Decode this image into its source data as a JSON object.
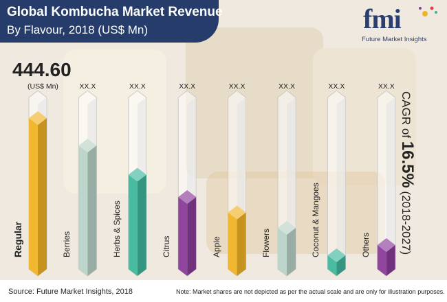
{
  "title": {
    "line1": "Global Kombucha Market Revenue",
    "line2": "By Flavour, 2018 (US$ Mn)"
  },
  "logo": {
    "text": "fmi",
    "tagline": "Future Market Insights"
  },
  "highlight": {
    "value": "444.60",
    "unit": "(US$ Mn)"
  },
  "value_placeholder": "XX.X",
  "cagr": {
    "prefix": "CAGR of ",
    "value": "16.5%",
    "period": " (2018-2027)"
  },
  "footer": {
    "source": "Source: Future Market Insights, 2018",
    "note": "Note: Market shares are not depicted as per the actual scale and are only for illustration purposes."
  },
  "colors": {
    "title_bg": "#263d6b",
    "yellow": "#f1b326",
    "mint": "#b9d3c8",
    "teal": "#3fb79c",
    "purple": "#8a3c99"
  },
  "chart_data": {
    "type": "bar",
    "categories": [
      "Regular",
      "Berries",
      "Herbs & Spices",
      "Citrus",
      "Apple",
      "Flowers",
      "Coconut & Mangoes",
      "Others"
    ],
    "values": [
      444.6,
      null,
      null,
      null,
      null,
      null,
      null,
      null
    ],
    "value_labels": [
      "444.60",
      "XX.X",
      "XX.X",
      "XX.X",
      "XX.X",
      "XX.X",
      "XX.X",
      "XX.X"
    ],
    "relative_fill": [
      0.88,
      0.72,
      0.55,
      0.42,
      0.33,
      0.24,
      0.08,
      0.14
    ],
    "bar_colors": [
      "#f1b326",
      "#b9d3c8",
      "#3fb79c",
      "#8a3c99",
      "#f1b326",
      "#b9d3c8",
      "#3fb79c",
      "#8a3c99"
    ]
  }
}
